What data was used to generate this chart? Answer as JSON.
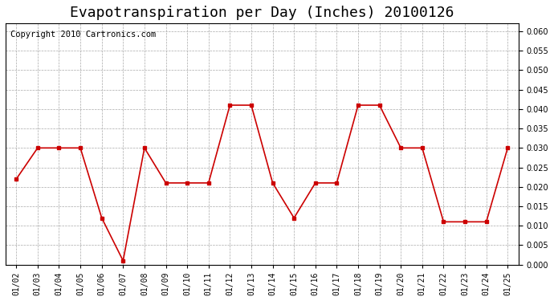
{
  "title": "Evapotranspiration per Day (Inches) 20100126",
  "copyright_text": "Copyright 2010 Cartronics.com",
  "x_labels": [
    "01/02",
    "01/03",
    "01/04",
    "01/05",
    "01/06",
    "01/07",
    "01/08",
    "01/09",
    "01/10",
    "01/11",
    "01/12",
    "01/13",
    "01/14",
    "01/15",
    "01/16",
    "01/17",
    "01/18",
    "01/19",
    "01/20",
    "01/21",
    "01/22",
    "01/23",
    "01/24",
    "01/25"
  ],
  "y_values": [
    0.022,
    0.03,
    0.03,
    0.03,
    0.012,
    0.001,
    0.03,
    0.021,
    0.021,
    0.021,
    0.041,
    0.041,
    0.021,
    0.012,
    0.021,
    0.021,
    0.041,
    0.041,
    0.03,
    0.03,
    0.011,
    0.011,
    0.011,
    0.03
  ],
  "line_color": "#cc0000",
  "marker_color": "#cc0000",
  "bg_color": "#ffffff",
  "grid_color": "#aaaaaa",
  "ylim": [
    0.0,
    0.062
  ],
  "yticks": [
    0.0,
    0.005,
    0.01,
    0.015,
    0.02,
    0.025,
    0.03,
    0.035,
    0.04,
    0.045,
    0.05,
    0.055,
    0.06
  ],
  "title_fontsize": 13,
  "copyright_fontsize": 7.5
}
